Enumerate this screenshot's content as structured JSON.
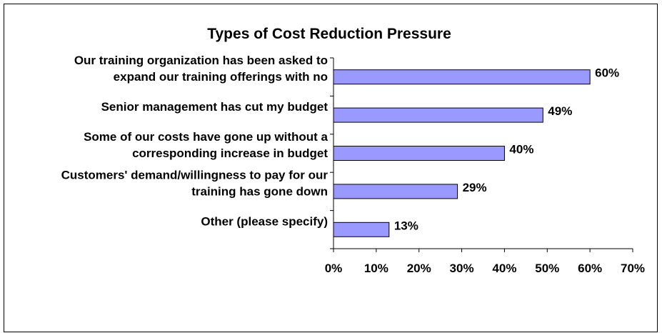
{
  "chart_data": {
    "type": "bar",
    "orientation": "horizontal",
    "title": "Types of Cost Reduction Pressure",
    "categories": [
      [
        "Our training organization has been asked to",
        "expand our training offerings with no"
      ],
      [
        "Senior management has cut my budget"
      ],
      [
        "Some of our costs have gone up without a",
        "corresponding increase in budget"
      ],
      [
        "Customers' demand/willingness to pay for our",
        "training has gone down"
      ],
      [
        "Other (please specify)"
      ]
    ],
    "values": [
      60,
      49,
      40,
      29,
      13
    ],
    "value_labels": [
      "60%",
      "49%",
      "40%",
      "29%",
      "13%"
    ],
    "xlim": [
      0,
      70
    ],
    "x_ticks": [
      0,
      10,
      20,
      30,
      40,
      50,
      60,
      70
    ],
    "x_tick_labels": [
      "0%",
      "10%",
      "20%",
      "30%",
      "40%",
      "50%",
      "60%",
      "70%"
    ],
    "bar_color": "#9999ff",
    "grid": false,
    "legend": false
  }
}
